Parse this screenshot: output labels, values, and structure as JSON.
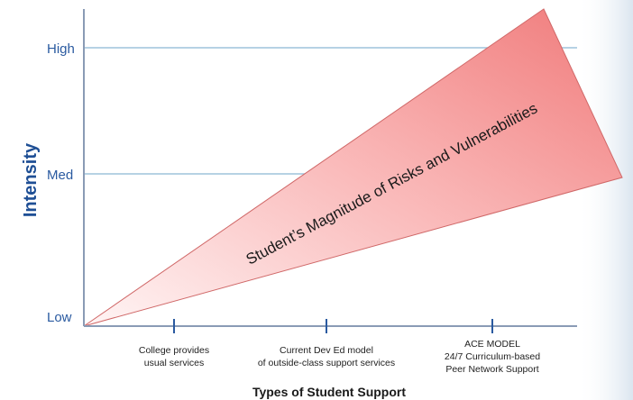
{
  "chart_data": {
    "type": "diagram",
    "title": "",
    "ylabel": "Intensity",
    "xlabel": "Types of Student Support",
    "y_ticks": [
      "Low",
      "Med",
      "High"
    ],
    "x_categories": [
      {
        "line1": "College provides",
        "line2": "usual services",
        "line3": ""
      },
      {
        "line1": "Current Dev Ed model",
        "line2": "of outside-class support services",
        "line3": ""
      },
      {
        "line1": "ACE MODEL",
        "line2": "24/7 Curriculum-based",
        "line3": "Peer Network Support"
      }
    ],
    "wedge_label": "Student’s Magnitude of Risks and Vulnerabilities",
    "colors": {
      "axis": "#8a9bb5",
      "grid": "#9ec4dc",
      "label_blue": "#1f4f95",
      "tick_text": "#2a5aa0",
      "wedge_light": "#fde6e6",
      "wedge_dark": "#f08a8a",
      "wedge_stroke": "#c85050",
      "right_panel": "#e8eef5"
    }
  }
}
